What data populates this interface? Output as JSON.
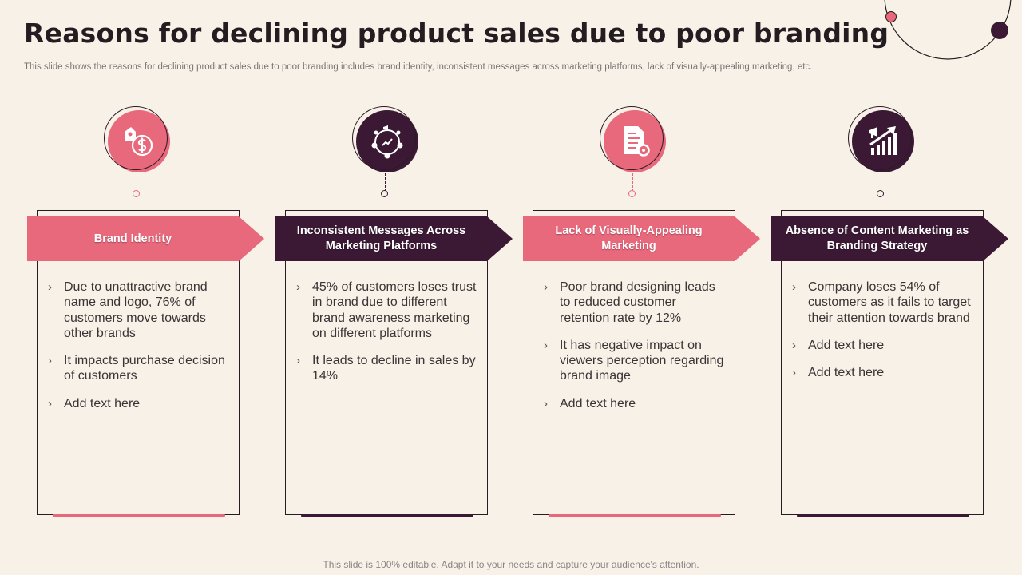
{
  "title": "Reasons for declining product sales due to poor branding",
  "subtitle": "This slide shows the reasons for declining product sales due to poor branding includes brand identity, inconsistent messages across marketing platforms, lack of visually-appealing marketing, etc.",
  "footer": "This slide is 100% editable. Adapt it to your needs and capture your audience's attention.",
  "colors": {
    "accent_pink": "#e8687c",
    "accent_dark": "#3b1934",
    "background": "#f7f1e7"
  },
  "bullet_marker": "›",
  "columns": [
    {
      "heading": "Brand Identity",
      "icon": "price-tag-dollar-icon",
      "theme": "pink",
      "bullets": [
        "Due to unattractive  brand name and logo, 76% of customers move towards other brands",
        "It impacts purchase decision of customers",
        "Add text here"
      ]
    },
    {
      "heading": "Inconsistent Messages Across Marketing Platforms",
      "icon": "marketing-cycle-icon",
      "theme": "dark",
      "bullets": [
        "45% of customers loses trust in brand due to different brand awareness marketing on different platforms",
        "It leads to decline in sales by 14%"
      ]
    },
    {
      "heading": "Lack of Visually-Appealing Marketing",
      "icon": "document-gear-icon",
      "theme": "pink",
      "bullets": [
        "Poor brand designing leads to reduced customer retention rate by 12%",
        "It has negative impact on viewers perception regarding brand image",
        "Add text here"
      ]
    },
    {
      "heading": "Absence of Content Marketing as Branding Strategy",
      "icon": "growth-chart-megaphone-icon",
      "theme": "dark",
      "bullets": [
        "Company loses 54% of customers as it fails to target their attention towards brand",
        "Add text here",
        "Add text here"
      ]
    }
  ]
}
